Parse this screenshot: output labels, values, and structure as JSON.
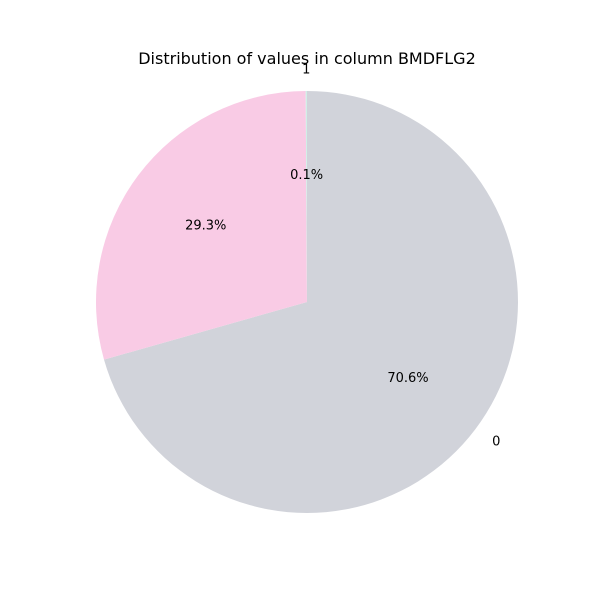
{
  "chart_data": {
    "type": "pie",
    "title": "Distribution of values in column BMDFLG2",
    "categories": [
      "0",
      "",
      "1"
    ],
    "values": [
      70.6,
      29.3,
      0.1
    ],
    "pct_labels": [
      "70.6%",
      "29.3%",
      "0.1%"
    ],
    "colors": [
      "#d1d3da",
      "#f9cbe5",
      "#d0efe7"
    ],
    "start_angle_deg": 90,
    "direction": "clockwise"
  }
}
